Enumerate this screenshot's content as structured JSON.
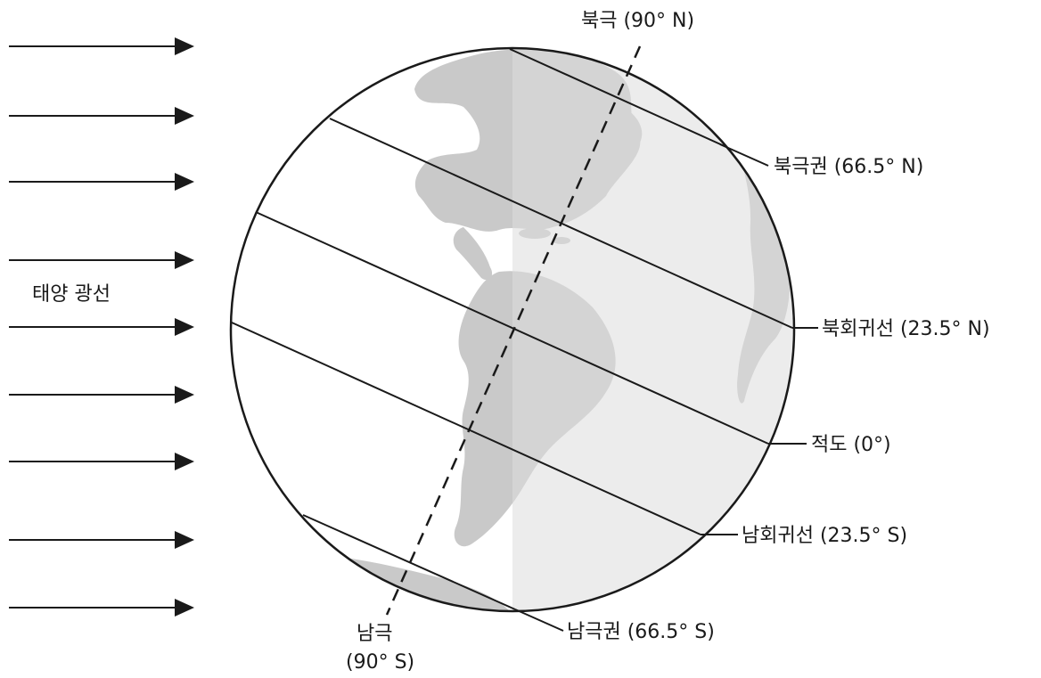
{
  "labels": {
    "sunlight": "태양 광선",
    "north_pole": "북극 (90° N)",
    "arctic_circle": "북극권 (66.5° N)",
    "tropic_cancer": "북회귀선 (23.5° N)",
    "equator": "적도 (0°)",
    "tropic_capricorn": "남회귀선 (23.5° S)",
    "antarctic_circle": "남극권 (66.5° S)",
    "south_pole_line1": "남극",
    "south_pole_line2": "(90° S)"
  },
  "sun_arrow_count": 9,
  "colors": {
    "land": "#c9c9c9",
    "night_side": "#dcdcdc",
    "ink": "#1a1a1a"
  }
}
